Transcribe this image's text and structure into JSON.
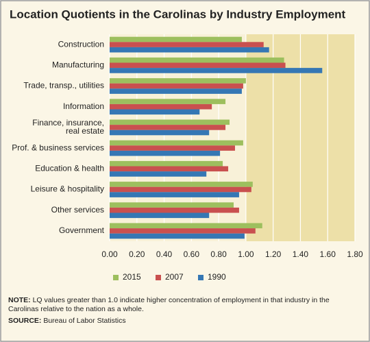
{
  "chart_data": {
    "type": "barh",
    "title": "Location Quotients in the Carolinas by Industry Employment",
    "categories": [
      "Construction",
      "Manufacturing",
      "Trade, transp., utilities",
      "Information",
      "Finance, insurance,\nreal estate",
      "Prof. & business services",
      "Education & health",
      "Leisure & hospitality",
      "Other services",
      "Government"
    ],
    "series": [
      {
        "name": "2015",
        "color": "#9dbf5e",
        "values": [
          0.97,
          1.28,
          1.0,
          0.85,
          0.88,
          0.98,
          0.83,
          1.05,
          0.91,
          1.12
        ]
      },
      {
        "name": "2007",
        "color": "#c9504f",
        "values": [
          1.13,
          1.29,
          0.98,
          0.75,
          0.85,
          0.92,
          0.87,
          1.04,
          0.95,
          1.07
        ]
      },
      {
        "name": "1990",
        "color": "#3577b4",
        "values": [
          1.17,
          1.56,
          0.97,
          0.66,
          0.73,
          0.81,
          0.71,
          0.95,
          0.73,
          0.99
        ]
      }
    ],
    "xlim": [
      0,
      1.8
    ],
    "xticks": [
      {
        "value": 0,
        "label": "0.00"
      },
      {
        "value": 0.2,
        "label": "0.20"
      },
      {
        "value": 0.4,
        "label": "0.40"
      },
      {
        "value": 0.6,
        "label": "0.60"
      },
      {
        "value": 0.8,
        "label": "0.80"
      },
      {
        "value": 1.0,
        "label": "1.00"
      },
      {
        "value": 1.2,
        "label": "1.20"
      },
      {
        "value": 1.4,
        "label": "1.40"
      },
      {
        "value": 1.6,
        "label": "1.60"
      },
      {
        "value": 1.8,
        "label": "1.80"
      }
    ],
    "grid": true,
    "highlight_from": 1.0,
    "legend": "bottom",
    "note_label": "NOTE:",
    "note": "LQ values greater than 1.0 indicate higher concentration of employment in that industry in the Carolinas relative to the nation as a whole.",
    "source_label": "SOURCE:",
    "source": "Bureau of Labor Statistics"
  }
}
